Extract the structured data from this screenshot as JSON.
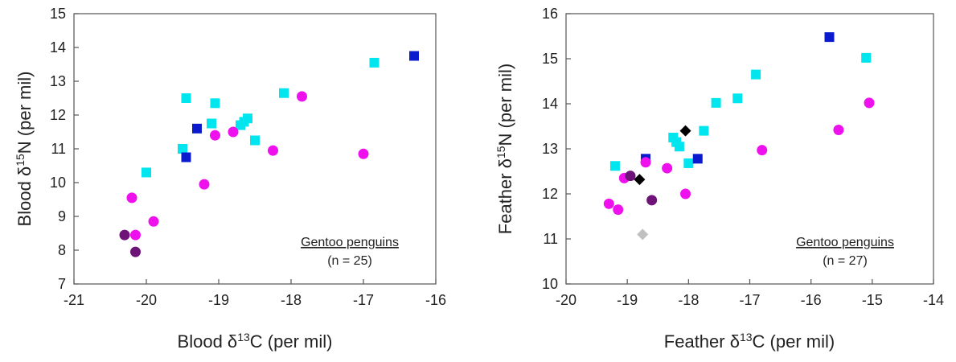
{
  "chart_data": [
    {
      "type": "scatter",
      "xlabel": "Blood δ13C (per mil)",
      "ylabel": "Blood δ15N (per mil)",
      "xlim": [
        -21,
        -16
      ],
      "ylim": [
        7,
        15
      ],
      "xticks": [
        -21,
        -20,
        -19,
        -18,
        -17,
        -16
      ],
      "yticks": [
        7,
        8,
        9,
        10,
        11,
        12,
        13,
        14,
        15
      ],
      "xtick_labels": [
        "-21",
        "-20",
        "-19",
        "-18",
        "-17",
        "-16"
      ],
      "ytick_labels": [
        "7",
        "8",
        "9",
        "10",
        "11",
        "12",
        "13",
        "14",
        "15"
      ],
      "axis_parts": {
        "x": {
          "pre": "Blood δ",
          "sup": "13",
          "post": "C (per mil)"
        },
        "y": {
          "pre": "Blood δ",
          "sup": "15",
          "post": "N (per mil)"
        }
      },
      "annotation": {
        "title": "Gentoo penguins",
        "n": "(n = 25)"
      },
      "grid": false,
      "series": [
        {
          "marker": "square",
          "color": "#00e5ee",
          "points": [
            [
              -20.0,
              10.3
            ],
            [
              -19.5,
              11.0
            ],
            [
              -19.45,
              12.5
            ],
            [
              -19.1,
              11.75
            ],
            [
              -19.05,
              12.35
            ],
            [
              -18.7,
              11.7
            ],
            [
              -18.65,
              11.8
            ],
            [
              -18.6,
              11.9
            ],
            [
              -18.5,
              11.25
            ],
            [
              -18.1,
              12.65
            ],
            [
              -16.85,
              13.55
            ]
          ]
        },
        {
          "marker": "square",
          "color": "#0a1acc",
          "points": [
            [
              -19.45,
              10.75
            ],
            [
              -19.3,
              11.6
            ],
            [
              -16.3,
              13.75
            ]
          ]
        },
        {
          "marker": "circle",
          "color": "#ee11ee",
          "points": [
            [
              -20.2,
              9.55
            ],
            [
              -20.15,
              8.45
            ],
            [
              -19.9,
              8.85
            ],
            [
              -19.2,
              9.95
            ],
            [
              -19.05,
              11.4
            ],
            [
              -18.8,
              11.5
            ],
            [
              -18.25,
              10.95
            ],
            [
              -17.85,
              12.55
            ],
            [
              -17.0,
              10.85
            ]
          ]
        },
        {
          "marker": "circle",
          "color": "#6e1479",
          "points": [
            [
              -20.3,
              8.45
            ],
            [
              -20.15,
              7.95
            ]
          ]
        }
      ]
    },
    {
      "type": "scatter",
      "xlabel": "Feather δ13C (per mil)",
      "ylabel": "Feather δ15N (per mil)",
      "xlim": [
        -20,
        -14
      ],
      "ylim": [
        10,
        16
      ],
      "xticks": [
        -20,
        -19,
        -18,
        -17,
        -16,
        -15,
        -14
      ],
      "yticks": [
        10,
        11,
        12,
        13,
        14,
        15,
        16
      ],
      "xtick_labels": [
        "-20",
        "-19",
        "-18",
        "-17",
        "-16",
        "-15",
        "-14"
      ],
      "ytick_labels": [
        "10",
        "11",
        "12",
        "13",
        "14",
        "15",
        "16"
      ],
      "axis_parts": {
        "x": {
          "pre": "Feather δ",
          "sup": "13",
          "post": "C (per mil)"
        },
        "y": {
          "pre": "Feather δ",
          "sup": "15",
          "post": "N (per mil)"
        }
      },
      "annotation": {
        "title": "Gentoo penguins",
        "n": "(n = 27)"
      },
      "grid": false,
      "series": [
        {
          "marker": "square",
          "color": "#00e5ee",
          "points": [
            [
              -19.2,
              12.62
            ],
            [
              -18.25,
              13.25
            ],
            [
              -18.2,
              13.15
            ],
            [
              -18.15,
              13.05
            ],
            [
              -18.0,
              12.68
            ],
            [
              -17.75,
              13.4
            ],
            [
              -17.55,
              14.02
            ],
            [
              -17.2,
              14.12
            ],
            [
              -16.9,
              14.65
            ],
            [
              -15.1,
              15.02
            ]
          ]
        },
        {
          "marker": "square",
          "color": "#0a1acc",
          "points": [
            [
              -18.7,
              12.78
            ],
            [
              -17.85,
              12.78
            ],
            [
              -15.7,
              15.48
            ]
          ]
        },
        {
          "marker": "circle",
          "color": "#ee11ee",
          "points": [
            [
              -19.3,
              11.78
            ],
            [
              -19.15,
              11.65
            ],
            [
              -19.05,
              12.35
            ],
            [
              -18.7,
              12.7
            ],
            [
              -18.35,
              12.57
            ],
            [
              -18.05,
              12.0
            ],
            [
              -16.8,
              12.97
            ],
            [
              -15.55,
              13.42
            ],
            [
              -15.05,
              14.02
            ]
          ]
        },
        {
          "marker": "circle",
          "color": "#6e1479",
          "points": [
            [
              -18.95,
              12.4
            ],
            [
              -18.6,
              11.86
            ]
          ]
        },
        {
          "marker": "diamond",
          "color": "#000000",
          "points": [
            [
              -18.8,
              12.32
            ],
            [
              -18.05,
              13.4
            ]
          ]
        },
        {
          "marker": "diamond",
          "color": "#c0c0c0",
          "points": [
            [
              -18.75,
              11.1
            ]
          ]
        }
      ]
    }
  ]
}
